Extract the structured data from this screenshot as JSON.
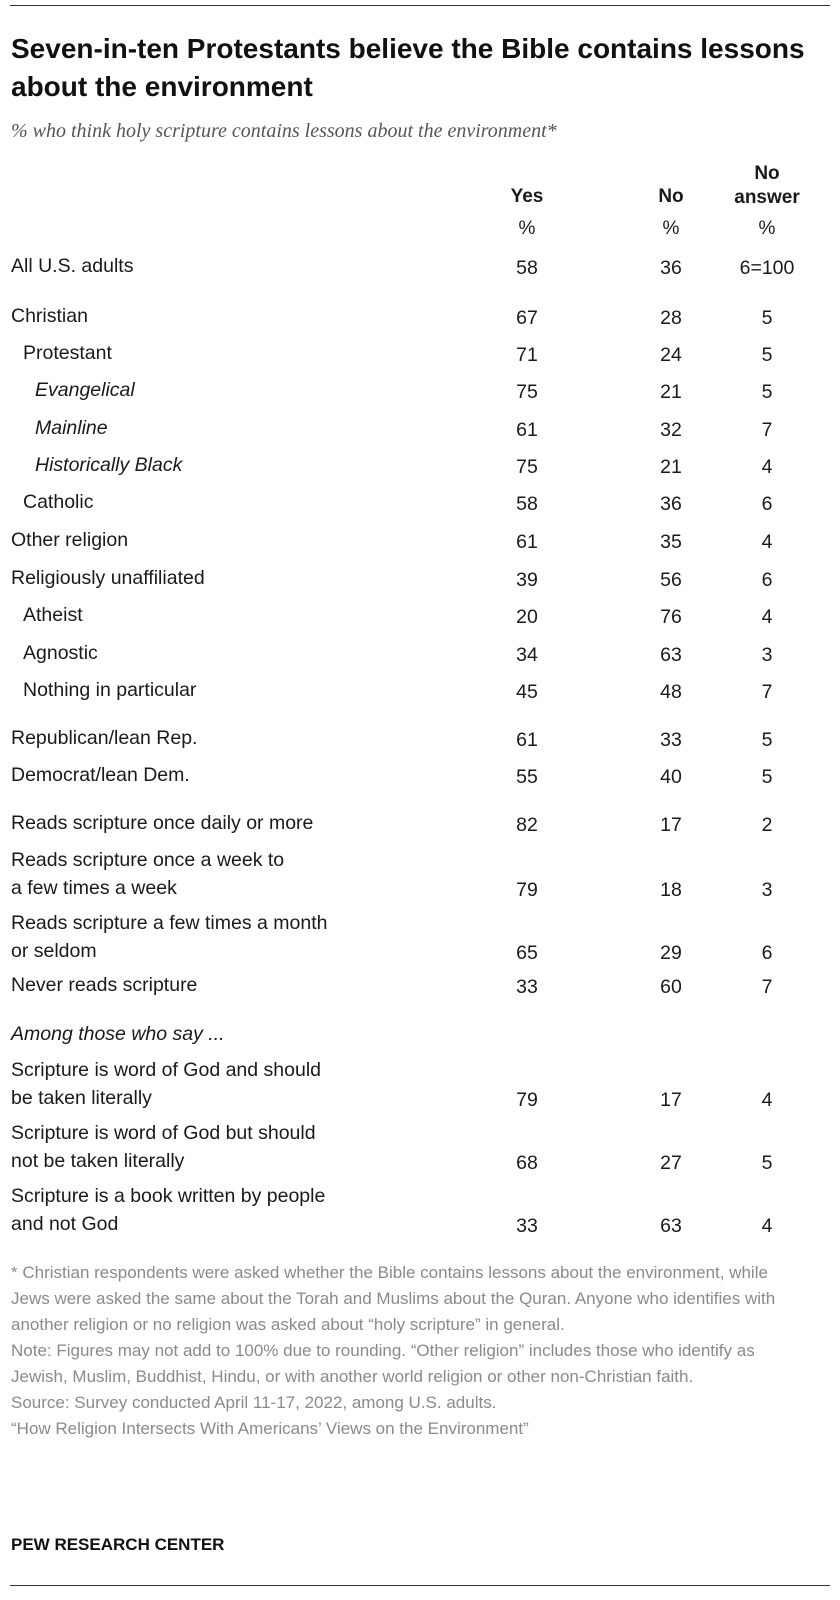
{
  "header": {
    "title": "Seven-in-ten Protestants believe the Bible contains lessons about the environment",
    "subtitle": "% who think holy scripture contains lessons about the environment*"
  },
  "chart_data": {
    "type": "table",
    "columns": [
      {
        "label": "Yes",
        "unit": "%"
      },
      {
        "label": "No",
        "unit": "%"
      },
      {
        "label": "No answer",
        "unit": "%"
      }
    ],
    "section_label": "Among those who say ...",
    "rows": [
      {
        "label": "All U.S. adults",
        "yes": "58",
        "no": "36",
        "na": "6=100",
        "indent": 0,
        "italic": false
      },
      {
        "label": "Christian",
        "yes": "67",
        "no": "28",
        "na": "5",
        "indent": 0,
        "italic": false
      },
      {
        "label": "Protestant",
        "yes": "71",
        "no": "24",
        "na": "5",
        "indent": 1,
        "italic": false
      },
      {
        "label": "Evangelical",
        "yes": "75",
        "no": "21",
        "na": "5",
        "indent": 2,
        "italic": true
      },
      {
        "label": "Mainline",
        "yes": "61",
        "no": "32",
        "na": "7",
        "indent": 2,
        "italic": true
      },
      {
        "label": "Historically Black",
        "yes": "75",
        "no": "21",
        "na": "4",
        "indent": 2,
        "italic": true
      },
      {
        "label": "Catholic",
        "yes": "58",
        "no": "36",
        "na": "6",
        "indent": 1,
        "italic": false
      },
      {
        "label": "Other religion",
        "yes": "61",
        "no": "35",
        "na": "4",
        "indent": 0,
        "italic": false
      },
      {
        "label": "Religiously unaffiliated",
        "yes": "39",
        "no": "56",
        "na": "6",
        "indent": 0,
        "italic": false
      },
      {
        "label": "Atheist",
        "yes": "20",
        "no": "76",
        "na": "4",
        "indent": 1,
        "italic": false
      },
      {
        "label": "Agnostic",
        "yes": "34",
        "no": "63",
        "na": "3",
        "indent": 1,
        "italic": false
      },
      {
        "label": "Nothing in particular",
        "yes": "45",
        "no": "48",
        "na": "7",
        "indent": 1,
        "italic": false
      },
      {
        "label": "Republican/lean Rep.",
        "yes": "61",
        "no": "33",
        "na": "5",
        "indent": 0,
        "italic": false
      },
      {
        "label": "Democrat/lean Dem.",
        "yes": "55",
        "no": "40",
        "na": "5",
        "indent": 0,
        "italic": false
      },
      {
        "label": "Reads scripture once daily or more",
        "yes": "82",
        "no": "17",
        "na": "2",
        "indent": 0,
        "italic": false
      },
      {
        "label": "Reads scripture once a week to\na few times a week",
        "yes": "79",
        "no": "18",
        "na": "3",
        "indent": 0,
        "italic": false
      },
      {
        "label": "Reads scripture a few times a month\nor seldom",
        "yes": "65",
        "no": "29",
        "na": "6",
        "indent": 0,
        "italic": false
      },
      {
        "label": "Never reads scripture",
        "yes": "33",
        "no": "60",
        "na": "7",
        "indent": 0,
        "italic": false
      },
      {
        "label": "Scripture is word of God and should\nbe taken literally",
        "yes": "79",
        "no": "17",
        "na": "4",
        "indent": 0,
        "italic": false
      },
      {
        "label": "Scripture is word of God but should\nnot be taken literally",
        "yes": "68",
        "no": "27",
        "na": "5",
        "indent": 0,
        "italic": false
      },
      {
        "label": "Scripture is a book written by people\nand not God",
        "yes": "33",
        "no": "63",
        "na": "4",
        "indent": 0,
        "italic": false
      }
    ]
  },
  "footer": {
    "footnote": "* Christian respondents were asked whether the Bible contains lessons about the environment, while Jews were asked the same about the Torah and Muslims about the Quran. Anyone who identifies with another religion or no religion was asked about “holy scripture” in general.",
    "note": "Note: Figures may not add to 100% due to rounding. “Other religion” includes those who identify as Jewish, Muslim, Buddhist, Hindu, or with another world religion or other non-Christian faith.",
    "source": "Source: Survey conducted April 11-17, 2022, among U.S. adults.",
    "report": "“How Religion Intersects With Americans’ Views on the Environment”",
    "org": "PEW RESEARCH CENTER"
  }
}
